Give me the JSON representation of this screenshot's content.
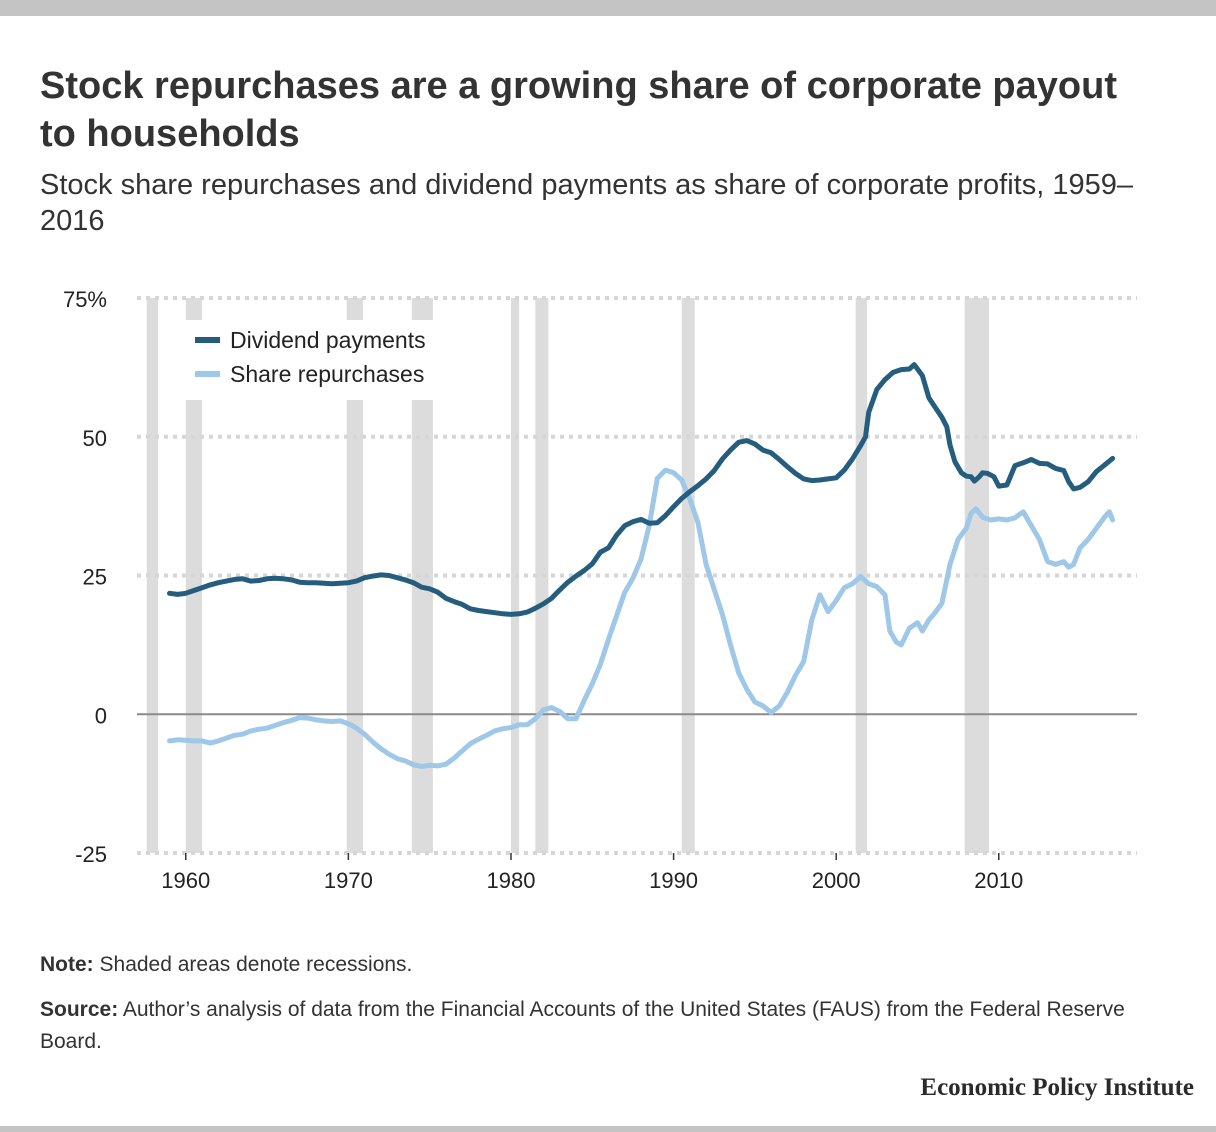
{
  "header": {
    "title": "Stock repurchases are a growing share of corporate payout to households",
    "subtitle": "Stock share repurchases and dividend payments as share of corporate profits, 1959–2016"
  },
  "footer": {
    "note_label": "Note:",
    "note_text": "Shaded areas denote recessions.",
    "source_label": "Source:",
    "source_text": "Author’s analysis of data from the Financial Accounts of the United States (FAUS) from the Federal Reserve Board.",
    "brand": "Economic Policy Institute"
  },
  "colors": {
    "dividend": "#255d7e",
    "repurchase": "#9ec7e8",
    "recession": "#dcdcdc",
    "grid": "#d6d6d6",
    "zero_line": "#8a8a8a"
  },
  "chart_data": {
    "type": "line",
    "title": "Stock repurchases are a growing share of corporate payout to households",
    "subtitle": "Stock share repurchases and dividend payments as share of corporate profits, 1959–2016",
    "xlabel": "",
    "ylabel": "",
    "xlim": [
      1957,
      2018.5
    ],
    "ylim": [
      -25,
      75
    ],
    "yticks": [
      75,
      50,
      25,
      0,
      -25
    ],
    "ytick_labels": [
      "75%",
      "50",
      "25",
      "0",
      "-25"
    ],
    "xticks": [
      1960,
      1970,
      1980,
      1990,
      2000,
      2010
    ],
    "xtick_labels": [
      "1960",
      "1970",
      "1980",
      "1990",
      "2000",
      "2010"
    ],
    "grid": true,
    "legend_position": "top-left",
    "recessions": [
      [
        1957.6,
        1958.3
      ],
      [
        1960.0,
        1961.0
      ],
      [
        1969.9,
        1970.9
      ],
      [
        1973.9,
        1975.2
      ],
      [
        1980.0,
        1980.5
      ],
      [
        1981.5,
        1982.3
      ],
      [
        1990.5,
        1991.3
      ],
      [
        2001.2,
        2001.9
      ],
      [
        2007.9,
        2009.4
      ]
    ],
    "series": [
      {
        "name": "Dividend payments",
        "points": [
          [
            1959,
            21.8
          ],
          [
            1959.5,
            21.6
          ],
          [
            1960,
            21.8
          ],
          [
            1960.5,
            22.3
          ],
          [
            1961,
            22.8
          ],
          [
            1961.5,
            23.3
          ],
          [
            1962,
            23.7
          ],
          [
            1962.5,
            24.0
          ],
          [
            1963,
            24.3
          ],
          [
            1963.5,
            24.4
          ],
          [
            1964,
            24.0
          ],
          [
            1964.5,
            24.1
          ],
          [
            1965,
            24.4
          ],
          [
            1965.5,
            24.5
          ],
          [
            1966,
            24.4
          ],
          [
            1966.5,
            24.2
          ],
          [
            1967,
            23.8
          ],
          [
            1967.5,
            23.7
          ],
          [
            1968,
            23.7
          ],
          [
            1968.5,
            23.6
          ],
          [
            1969,
            23.5
          ],
          [
            1970,
            23.7
          ],
          [
            1970.5,
            24.0
          ],
          [
            1971,
            24.6
          ],
          [
            1971.5,
            24.9
          ],
          [
            1972,
            25.1
          ],
          [
            1972.5,
            25.0
          ],
          [
            1973,
            24.6
          ],
          [
            1973.5,
            24.2
          ],
          [
            1974,
            23.7
          ],
          [
            1974.5,
            22.9
          ],
          [
            1975,
            22.6
          ],
          [
            1975.5,
            22.0
          ],
          [
            1976,
            20.9
          ],
          [
            1976.5,
            20.3
          ],
          [
            1977,
            19.8
          ],
          [
            1977.5,
            19.0
          ],
          [
            1978,
            18.7
          ],
          [
            1978.5,
            18.5
          ],
          [
            1979,
            18.3
          ],
          [
            1979.5,
            18.1
          ],
          [
            1980,
            18.0
          ],
          [
            1980.5,
            18.1
          ],
          [
            1981,
            18.4
          ],
          [
            1981.5,
            19.1
          ],
          [
            1982,
            19.9
          ],
          [
            1982.5,
            20.9
          ],
          [
            1983,
            22.4
          ],
          [
            1983.5,
            23.8
          ],
          [
            1984,
            24.9
          ],
          [
            1984.5,
            25.9
          ],
          [
            1985,
            27.1
          ],
          [
            1985.5,
            29.2
          ],
          [
            1986,
            30.0
          ],
          [
            1986.5,
            32.3
          ],
          [
            1987,
            34.0
          ],
          [
            1987.5,
            34.7
          ],
          [
            1988,
            35.1
          ],
          [
            1988.5,
            34.4
          ],
          [
            1989,
            34.5
          ],
          [
            1989.5,
            35.8
          ],
          [
            1990,
            37.4
          ],
          [
            1990.5,
            38.9
          ],
          [
            1991,
            40.1
          ],
          [
            1991.5,
            41.2
          ],
          [
            1992,
            42.4
          ],
          [
            1992.5,
            43.9
          ],
          [
            1993,
            46.0
          ],
          [
            1993.5,
            47.6
          ],
          [
            1994,
            49.0
          ],
          [
            1994.5,
            49.3
          ],
          [
            1995,
            48.7
          ],
          [
            1995.5,
            47.6
          ],
          [
            1996,
            47.1
          ],
          [
            1996.5,
            45.9
          ],
          [
            1997,
            44.6
          ],
          [
            1997.5,
            43.4
          ],
          [
            1998,
            42.4
          ],
          [
            1998.5,
            42.1
          ],
          [
            1999,
            42.2
          ],
          [
            1999.5,
            42.4
          ],
          [
            2000,
            42.6
          ],
          [
            2000.5,
            44.0
          ],
          [
            2001,
            46.0
          ],
          [
            2001.5,
            48.4
          ],
          [
            2001.8,
            50.0
          ],
          [
            2002,
            54.4
          ],
          [
            2002.5,
            58.5
          ],
          [
            2003,
            60.3
          ],
          [
            2003.5,
            61.6
          ],
          [
            2004,
            62.1
          ],
          [
            2004.5,
            62.2
          ],
          [
            2004.8,
            63.0
          ],
          [
            2005,
            62.2
          ],
          [
            2005.3,
            61.0
          ],
          [
            2005.7,
            57.0
          ],
          [
            2006,
            55.7
          ],
          [
            2006.5,
            53.5
          ],
          [
            2006.8,
            51.8
          ],
          [
            2007,
            48.5
          ],
          [
            2007.3,
            45.5
          ],
          [
            2007.7,
            43.5
          ],
          [
            2008,
            42.9
          ],
          [
            2008.3,
            42.8
          ],
          [
            2008.5,
            42.0
          ],
          [
            2008.8,
            42.8
          ],
          [
            2009,
            43.5
          ],
          [
            2009.3,
            43.4
          ],
          [
            2009.7,
            42.8
          ],
          [
            2010,
            41.1
          ],
          [
            2010.5,
            41.3
          ],
          [
            2011,
            44.8
          ],
          [
            2011.5,
            45.3
          ],
          [
            2012,
            45.9
          ],
          [
            2012.5,
            45.2
          ],
          [
            2013,
            45.1
          ],
          [
            2013.5,
            44.3
          ],
          [
            2014,
            43.9
          ],
          [
            2014.3,
            41.9
          ],
          [
            2014.6,
            40.6
          ],
          [
            2015,
            40.9
          ],
          [
            2015.5,
            41.9
          ],
          [
            2016,
            43.7
          ],
          [
            2016.5,
            44.9
          ],
          [
            2017,
            46.1
          ]
        ]
      },
      {
        "name": "Share repurchases",
        "points": [
          [
            1959,
            -4.8
          ],
          [
            1959.5,
            -4.6
          ],
          [
            1960,
            -4.7
          ],
          [
            1960.5,
            -4.8
          ],
          [
            1961,
            -4.8
          ],
          [
            1961.5,
            -5.2
          ],
          [
            1962,
            -4.8
          ],
          [
            1962.5,
            -4.3
          ],
          [
            1963,
            -3.8
          ],
          [
            1963.5,
            -3.6
          ],
          [
            1964,
            -3.0
          ],
          [
            1964.5,
            -2.7
          ],
          [
            1965,
            -2.5
          ],
          [
            1965.5,
            -2.0
          ],
          [
            1966,
            -1.5
          ],
          [
            1966.5,
            -1.1
          ],
          [
            1967,
            -0.6
          ],
          [
            1967.5,
            -0.7
          ],
          [
            1968,
            -1.0
          ],
          [
            1968.5,
            -1.2
          ],
          [
            1969,
            -1.3
          ],
          [
            1969.5,
            -1.2
          ],
          [
            1970,
            -1.7
          ],
          [
            1970.5,
            -2.5
          ],
          [
            1971,
            -3.6
          ],
          [
            1971.5,
            -5.0
          ],
          [
            1972,
            -6.2
          ],
          [
            1972.5,
            -7.2
          ],
          [
            1973,
            -8.0
          ],
          [
            1973.5,
            -8.4
          ],
          [
            1974,
            -9.1
          ],
          [
            1974.5,
            -9.4
          ],
          [
            1975,
            -9.2
          ],
          [
            1975.5,
            -9.3
          ],
          [
            1976,
            -9.0
          ],
          [
            1976.5,
            -7.9
          ],
          [
            1977,
            -6.6
          ],
          [
            1977.5,
            -5.3
          ],
          [
            1978,
            -4.5
          ],
          [
            1978.5,
            -3.8
          ],
          [
            1979,
            -3.0
          ],
          [
            1979.5,
            -2.6
          ],
          [
            1980,
            -2.4
          ],
          [
            1980.5,
            -1.9
          ],
          [
            1981,
            -1.9
          ],
          [
            1981.5,
            -0.8
          ],
          [
            1982,
            0.8
          ],
          [
            1982.5,
            1.2
          ],
          [
            1983,
            0.5
          ],
          [
            1983.5,
            -0.8
          ],
          [
            1984,
            -0.8
          ],
          [
            1984.5,
            2.5
          ],
          [
            1985,
            5.5
          ],
          [
            1985.5,
            9.0
          ],
          [
            1986,
            13.5
          ],
          [
            1986.5,
            17.8
          ],
          [
            1987,
            22.0
          ],
          [
            1987.5,
            24.5
          ],
          [
            1988,
            28.0
          ],
          [
            1988.5,
            34.0
          ],
          [
            1989,
            42.5
          ],
          [
            1989.5,
            44.0
          ],
          [
            1990,
            43.5
          ],
          [
            1990.5,
            42.2
          ],
          [
            1991,
            38.8
          ],
          [
            1991.5,
            34.5
          ],
          [
            1992,
            27.0
          ],
          [
            1992.5,
            22.5
          ],
          [
            1993,
            18.0
          ],
          [
            1993.5,
            12.5
          ],
          [
            1994,
            7.5
          ],
          [
            1994.5,
            4.5
          ],
          [
            1995,
            2.2
          ],
          [
            1995.5,
            1.5
          ],
          [
            1996,
            0.3
          ],
          [
            1996.5,
            1.5
          ],
          [
            1997,
            4.0
          ],
          [
            1997.5,
            7.0
          ],
          [
            1998,
            9.5
          ],
          [
            1998.5,
            17.0
          ],
          [
            1999,
            21.5
          ],
          [
            1999.5,
            18.5
          ],
          [
            2000,
            20.5
          ],
          [
            2000.5,
            22.8
          ],
          [
            2001,
            23.5
          ],
          [
            2001.5,
            24.8
          ],
          [
            2002,
            23.5
          ],
          [
            2002.5,
            23.0
          ],
          [
            2003,
            21.5
          ],
          [
            2003.3,
            15.0
          ],
          [
            2003.7,
            13.0
          ],
          [
            2004,
            12.5
          ],
          [
            2004.5,
            15.5
          ],
          [
            2005,
            16.5
          ],
          [
            2005.3,
            15.0
          ],
          [
            2005.7,
            17.0
          ],
          [
            2006,
            18.0
          ],
          [
            2006.5,
            20.0
          ],
          [
            2007,
            27.0
          ],
          [
            2007.5,
            31.5
          ],
          [
            2008,
            33.5
          ],
          [
            2008.3,
            36.2
          ],
          [
            2008.6,
            37.0
          ],
          [
            2009,
            35.5
          ],
          [
            2009.5,
            35.0
          ],
          [
            2010,
            35.2
          ],
          [
            2010.5,
            35.0
          ],
          [
            2011,
            35.4
          ],
          [
            2011.5,
            36.5
          ],
          [
            2012,
            34.0
          ],
          [
            2012.5,
            31.5
          ],
          [
            2013,
            27.5
          ],
          [
            2013.5,
            27.0
          ],
          [
            2014,
            27.5
          ],
          [
            2014.3,
            26.5
          ],
          [
            2014.6,
            27.0
          ],
          [
            2015,
            30.0
          ],
          [
            2015.5,
            31.5
          ],
          [
            2016,
            33.5
          ],
          [
            2016.5,
            35.5
          ],
          [
            2016.8,
            36.5
          ],
          [
            2017,
            35.0
          ]
        ]
      }
    ]
  }
}
